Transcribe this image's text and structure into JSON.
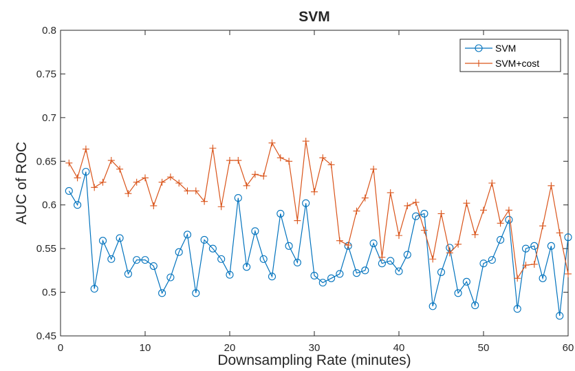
{
  "chart_data": {
    "type": "line",
    "title": "SVM",
    "xlabel": "Downsampling Rate (minutes)",
    "ylabel": "AUC of ROC",
    "xlim": [
      0,
      60
    ],
    "ylim": [
      0.45,
      0.8
    ],
    "xticks": [
      "0",
      "10",
      "20",
      "30",
      "40",
      "50",
      "60"
    ],
    "yticks": [
      "0.45",
      "0.5",
      "0.55",
      "0.6",
      "0.65",
      "0.7",
      "0.75",
      "0.8"
    ],
    "grid": false,
    "legend_position": "top-right",
    "x": [
      1,
      2,
      3,
      4,
      5,
      6,
      7,
      8,
      9,
      10,
      11,
      12,
      13,
      14,
      15,
      16,
      17,
      18,
      19,
      20,
      21,
      22,
      23,
      24,
      25,
      26,
      27,
      28,
      29,
      30,
      31,
      32,
      33,
      34,
      35,
      36,
      37,
      38,
      39,
      40,
      41,
      42,
      43,
      44,
      45,
      46,
      47,
      48,
      49,
      50,
      51,
      52,
      53,
      54,
      55,
      56,
      57,
      58,
      59,
      60
    ],
    "series": [
      {
        "name": "SVM",
        "color": "#0072BD",
        "marker": "circle",
        "values": [
          0.616,
          0.6,
          0.638,
          0.504,
          0.559,
          0.538,
          0.562,
          0.521,
          0.537,
          0.537,
          0.53,
          0.499,
          0.517,
          0.546,
          0.566,
          0.499,
          0.56,
          0.55,
          0.538,
          0.52,
          0.608,
          0.529,
          0.57,
          0.538,
          0.518,
          0.59,
          0.553,
          0.534,
          0.602,
          0.519,
          0.511,
          0.516,
          0.521,
          0.553,
          0.522,
          0.525,
          0.556,
          0.533,
          0.536,
          0.524,
          0.543,
          0.587,
          0.59,
          0.484,
          0.523,
          0.551,
          0.499,
          0.512,
          0.485,
          0.533,
          0.537,
          0.56,
          0.583,
          0.481,
          0.55,
          0.553,
          0.516,
          0.553,
          0.473,
          0.563
        ]
      },
      {
        "name": "SVM+cost",
        "color": "#D95319",
        "marker": "plus",
        "values": [
          0.648,
          0.631,
          0.664,
          0.62,
          0.626,
          0.651,
          0.641,
          0.613,
          0.626,
          0.631,
          0.599,
          0.626,
          0.632,
          0.625,
          0.616,
          0.616,
          0.604,
          0.665,
          0.598,
          0.651,
          0.651,
          0.622,
          0.635,
          0.633,
          0.671,
          0.654,
          0.65,
          0.582,
          0.673,
          0.615,
          0.654,
          0.646,
          0.559,
          0.554,
          0.593,
          0.608,
          0.641,
          0.54,
          0.614,
          0.565,
          0.599,
          0.603,
          0.571,
          0.538,
          0.59,
          0.545,
          0.555,
          0.602,
          0.566,
          0.594,
          0.625,
          0.579,
          0.594,
          0.516,
          0.531,
          0.532,
          0.576,
          0.622,
          0.568,
          0.521
        ]
      }
    ]
  }
}
